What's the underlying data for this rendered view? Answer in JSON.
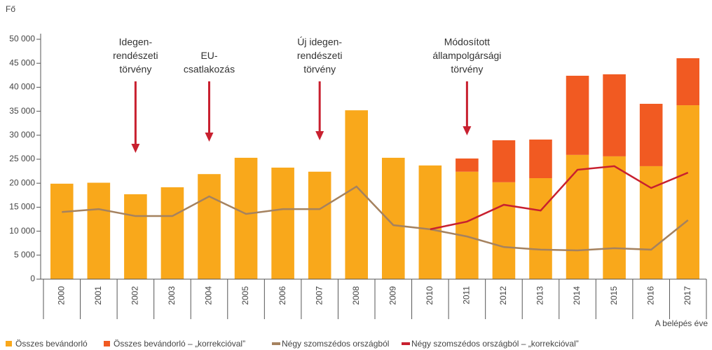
{
  "chart_data": {
    "type": "bar",
    "y_unit": "Fő",
    "x_label": "A belépés éve",
    "categories": [
      "2000",
      "2001",
      "2002",
      "2003",
      "2004",
      "2005",
      "2006",
      "2007",
      "2008",
      "2009",
      "2010",
      "2011",
      "2012",
      "2013",
      "2014",
      "2015",
      "2016",
      "2017"
    ],
    "series": [
      {
        "name": "Összes bevándorló",
        "type": "bar",
        "color": "#f9a81b",
        "values": [
          19900,
          20100,
          17700,
          19150,
          21900,
          25300,
          23250,
          22400,
          35200,
          25300,
          23700,
          22400,
          20200,
          21050,
          25900,
          25600,
          23550,
          36250
        ]
      },
      {
        "name": "Összes bevándorló – „korrekcióval”",
        "type": "bar",
        "color": "#f15a22",
        "values": [
          null,
          null,
          null,
          null,
          null,
          null,
          null,
          null,
          null,
          null,
          null,
          2750,
          8750,
          8050,
          16500,
          17100,
          13000,
          9800
        ]
      },
      {
        "name": "Négy szomszédos országból",
        "type": "line",
        "color": "#a5825f",
        "values": [
          14000,
          14600,
          13150,
          13150,
          17250,
          13600,
          14600,
          14600,
          19300,
          11250,
          10400,
          8900,
          6700,
          6150,
          6000,
          6450,
          6150,
          12300
        ]
      },
      {
        "name": "Négy szomszédos országból – „korrekcióval”",
        "type": "line",
        "color": "#c8202f",
        "values": [
          null,
          null,
          null,
          null,
          null,
          null,
          null,
          null,
          null,
          null,
          10400,
          12000,
          15500,
          14300,
          22800,
          23550,
          19000,
          22200
        ]
      }
    ],
    "ylim": [
      0,
      50000
    ],
    "yticks": [
      0,
      {
        "value": 5000,
        "label": "5 000"
      },
      {
        "value": 10000,
        "label": "10 000"
      },
      {
        "value": 15000,
        "label": "15 000"
      },
      {
        "value": 20000,
        "label": "20 000"
      },
      {
        "value": 25000,
        "label": "25 000"
      },
      {
        "value": 30000,
        "label": "30 000"
      },
      {
        "value": 35000,
        "label": "35 000"
      },
      {
        "value": 40000,
        "label": "40 000"
      },
      {
        "value": 45000,
        "label": "45 000"
      },
      {
        "value": 50000,
        "label": "50 000"
      }
    ],
    "grid": false,
    "annotations": [
      {
        "at": "2002",
        "lines": [
          "Idegen-",
          "rendészeti",
          "törvény"
        ]
      },
      {
        "at": "2004",
        "lines": [
          "EU-",
          "csatlakozás"
        ]
      },
      {
        "at": "2007",
        "lines": [
          "Új idegen-",
          "rendészeti",
          "törvény"
        ]
      },
      {
        "at": "2011",
        "lines": [
          "Módosított",
          "állampolgársági",
          "törvény"
        ]
      }
    ]
  }
}
